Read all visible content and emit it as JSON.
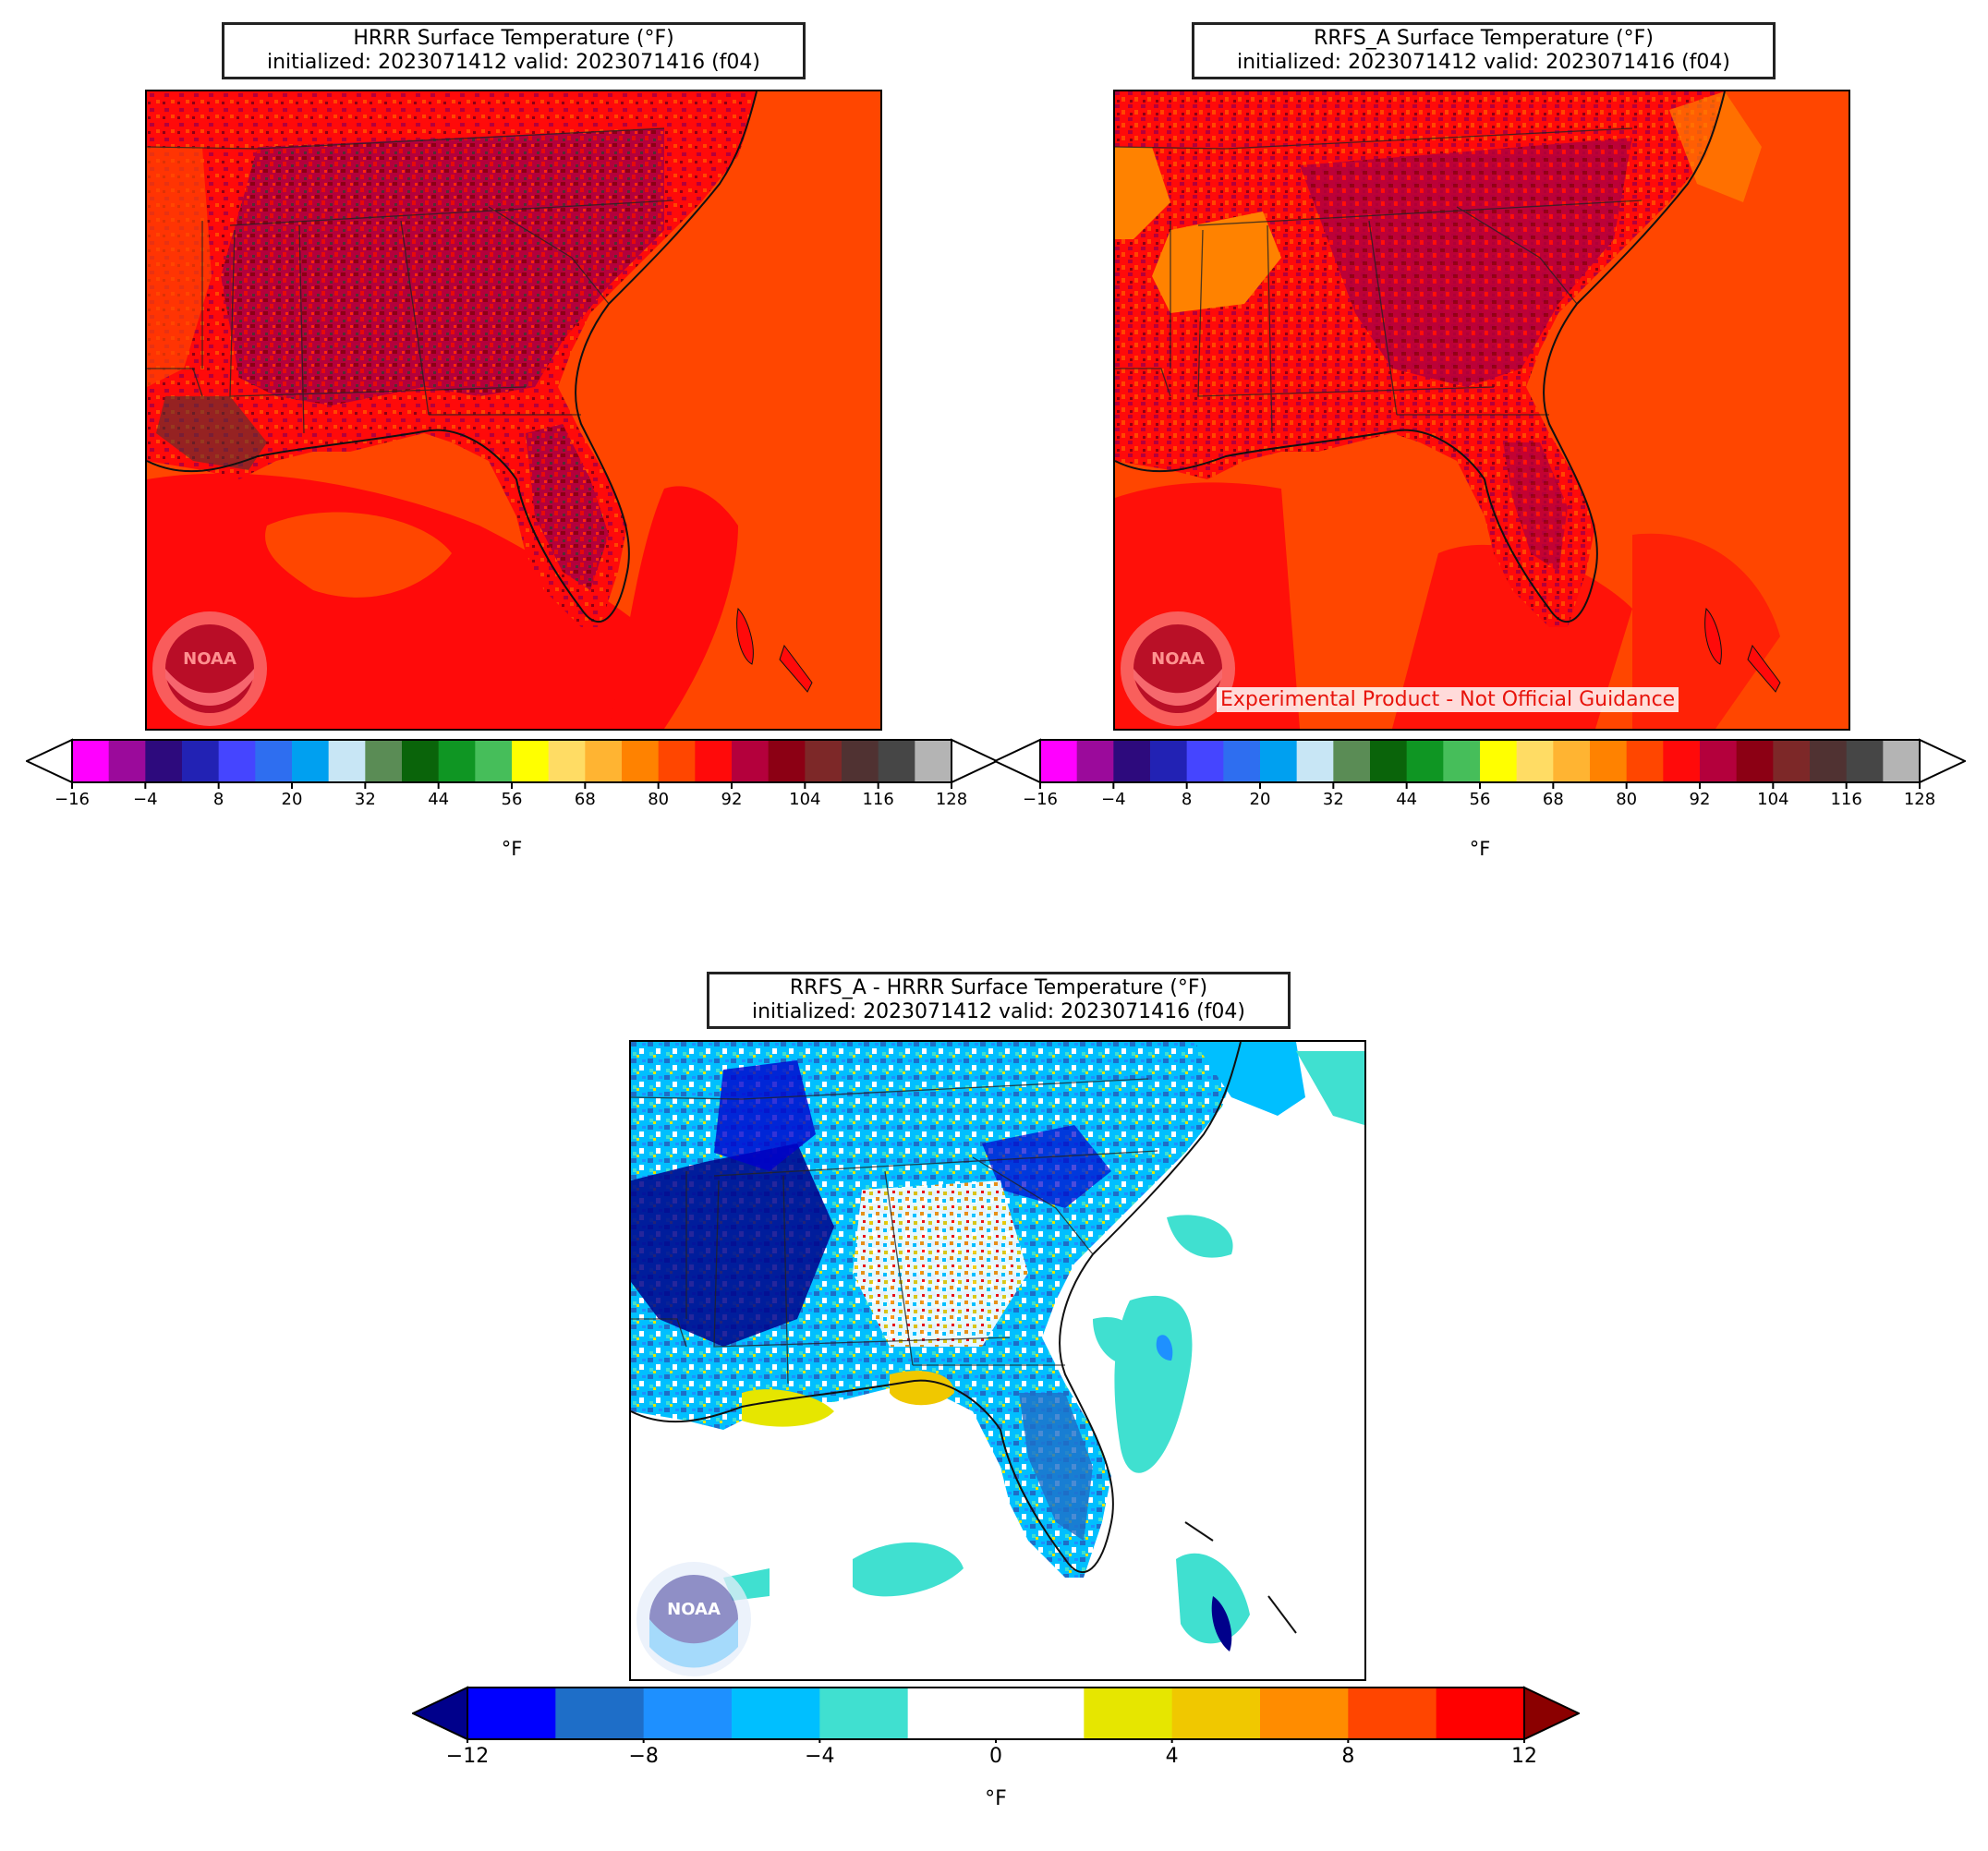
{
  "panels": [
    {
      "id": "hrrr",
      "title_line1": "HRRR Surface Temperature (°F)",
      "title_line2": "initialized: 2023071412 valid: 2023071416 (f04)",
      "logo": "noaa-logo",
      "colorbar": {
        "units": "°F",
        "ticks": [
          "−16",
          "−4",
          "8",
          "20",
          "32",
          "44",
          "56",
          "68",
          "80",
          "92",
          "104",
          "116",
          "128"
        ],
        "colors": [
          "#ff00ff",
          "#9b0a9b",
          "#2d0a7d",
          "#2222b4",
          "#4545ff",
          "#2e6ef0",
          "#00a0f0",
          "#c8e6f5",
          "#5a8c55",
          "#0a640a",
          "#0f9623",
          "#46be5a",
          "#ffff00",
          "#ffdc64",
          "#ffb432",
          "#ff8200",
          "#ff4600",
          "#ff0a0a",
          "#b4003c",
          "#8c0014",
          "#7d2828",
          "#503232",
          "#464646",
          "#b4b4b4"
        ],
        "extend_min_color": "#ffffff",
        "extend_max_color": "#ffffff"
      }
    },
    {
      "id": "rrfs",
      "title_line1": "RRFS_A Surface Temperature (°F)",
      "title_line2": "initialized: 2023071412 valid: 2023071416 (f04)",
      "logo": "noaa-logo",
      "note": "Experimental Product - Not Official Guidance",
      "colorbar": {
        "units": "°F",
        "ticks": [
          "−16",
          "−4",
          "8",
          "20",
          "32",
          "44",
          "56",
          "68",
          "80",
          "92",
          "104",
          "116",
          "128"
        ],
        "colors": [
          "#ff00ff",
          "#9b0a9b",
          "#2d0a7d",
          "#2222b4",
          "#4545ff",
          "#2e6ef0",
          "#00a0f0",
          "#c8e6f5",
          "#5a8c55",
          "#0a640a",
          "#0f9623",
          "#46be5a",
          "#ffff00",
          "#ffdc64",
          "#ffb432",
          "#ff8200",
          "#ff4600",
          "#ff0a0a",
          "#b4003c",
          "#8c0014",
          "#7d2828",
          "#503232",
          "#464646",
          "#b4b4b4"
        ],
        "extend_min_color": "#ffffff",
        "extend_max_color": "#ffffff"
      }
    },
    {
      "id": "diff",
      "title_line1": "RRFS_A - HRRR Surface Temperature (°F)",
      "title_line2": "initialized: 2023071412 valid: 2023071416 (f04)",
      "logo": "noaa-logo",
      "colorbar": {
        "units": "°F",
        "ticks": [
          "−12",
          "−8",
          "−4",
          "0",
          "4",
          "8",
          "12"
        ],
        "colors": [
          "#0000ff",
          "#1e6ec8",
          "#1e90ff",
          "#00bfff",
          "#40e0d0",
          "#ffffff",
          "#ffffff",
          "#e6e600",
          "#f0c800",
          "#ff8c00",
          "#ff4500",
          "#ff0000"
        ],
        "extend_min_color": "#00008b",
        "extend_max_color": "#8b0000"
      }
    }
  ]
}
